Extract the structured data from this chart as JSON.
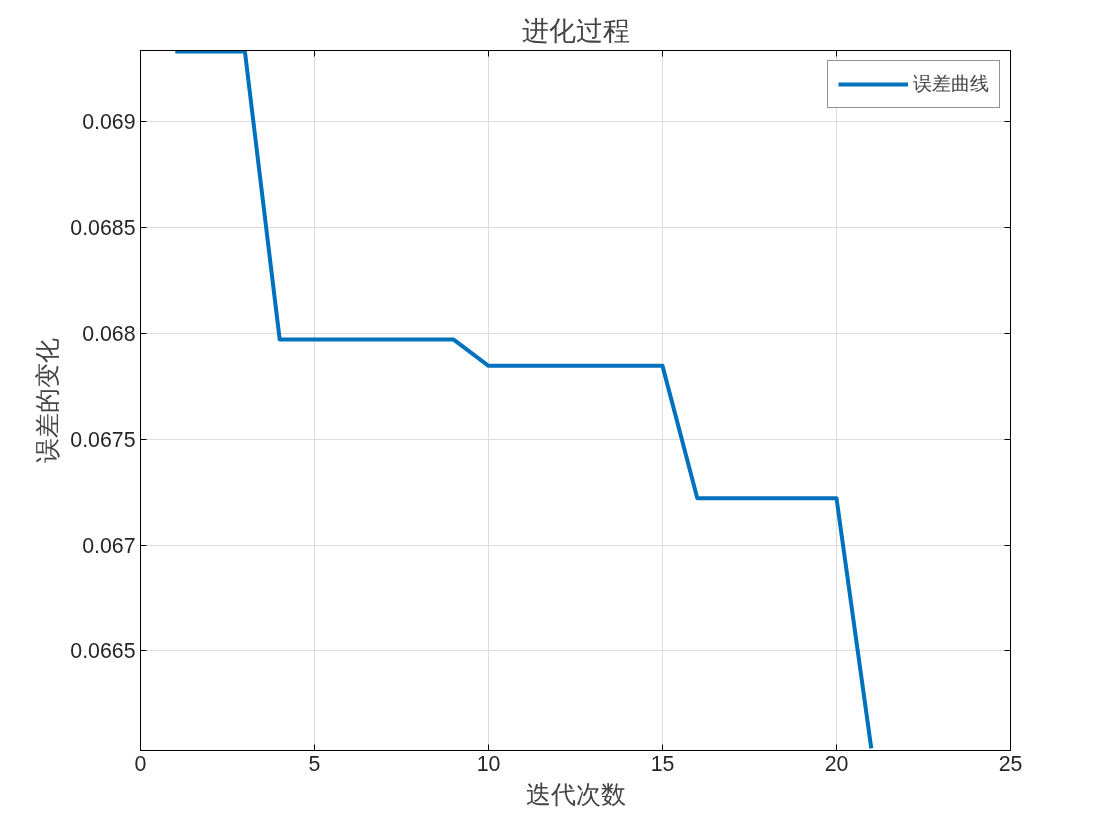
{
  "chart_data": {
    "type": "line",
    "title": "进化过程",
    "xlabel": "迭代次数",
    "ylabel": "误差的变化",
    "x": [
      1,
      2,
      3,
      4,
      5,
      6,
      7,
      8,
      9,
      10,
      11,
      12,
      13,
      14,
      15,
      16,
      17,
      18,
      19,
      20,
      21
    ],
    "series": [
      {
        "name": "误差曲线",
        "color": "#0072bd",
        "values": [
          0.06933,
          0.06933,
          0.06933,
          0.06797,
          0.06797,
          0.06797,
          0.06797,
          0.06797,
          0.06797,
          0.067846,
          0.067846,
          0.067846,
          0.067846,
          0.067846,
          0.067846,
          0.067221,
          0.067221,
          0.067221,
          0.067221,
          0.067221,
          0.06604
        ]
      }
    ],
    "xlim": [
      0,
      25
    ],
    "xticks": [
      0,
      5,
      10,
      15,
      20,
      25
    ],
    "ylim": [
      0.06603,
      0.069335
    ],
    "yticks": [
      0.0665,
      0.067,
      0.0675,
      0.068,
      0.0685,
      0.069
    ],
    "grid": true,
    "legend": "top right",
    "line_style": "solid",
    "marker": "none"
  }
}
